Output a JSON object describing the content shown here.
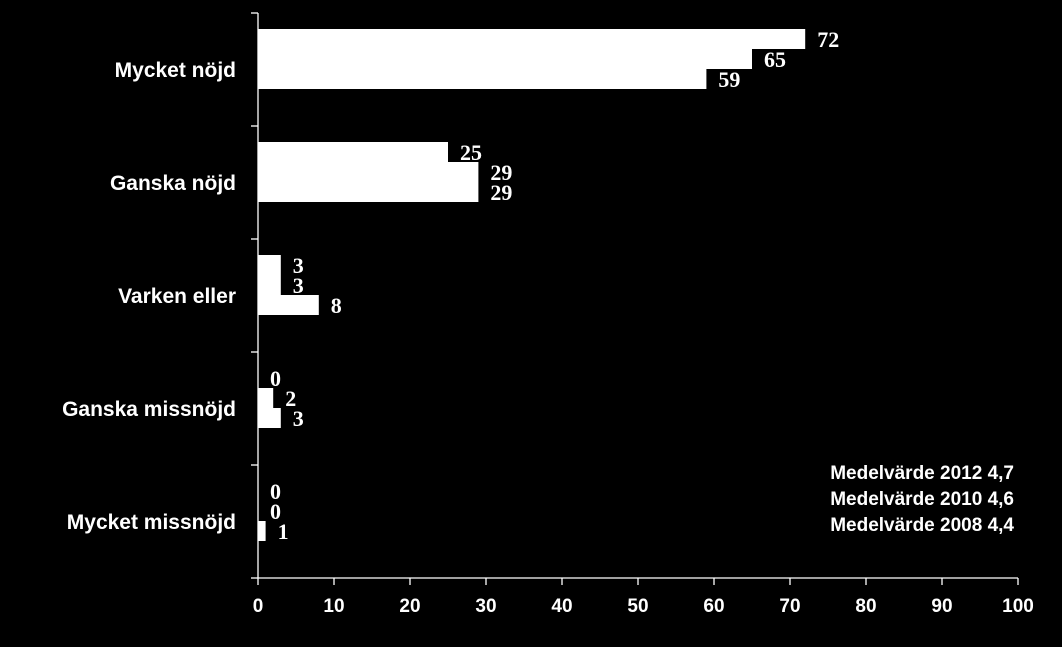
{
  "chart_data": {
    "type": "bar",
    "orientation": "horizontal",
    "categories": [
      "Mycket nöjd",
      "Ganska nöjd",
      "Varken eller",
      "Ganska missnöjd",
      "Mycket missnöjd"
    ],
    "series": [
      {
        "values": [
          72,
          25,
          3,
          0,
          0
        ]
      },
      {
        "values": [
          65,
          29,
          3,
          2,
          0
        ]
      },
      {
        "values": [
          59,
          29,
          8,
          3,
          1
        ]
      }
    ],
    "xlim": [
      0,
      100
    ],
    "xticks": [
      0,
      10,
      20,
      30,
      40,
      50,
      60,
      70,
      80,
      90,
      100
    ],
    "bar_color": "#ffffff",
    "background_color": "#000000",
    "grid": false,
    "legend": "none",
    "annotations": [
      "Medelvärde 2012 4,7",
      "Medelvärde 2010 4,6",
      "Medelvärde 2008 4,4"
    ]
  }
}
